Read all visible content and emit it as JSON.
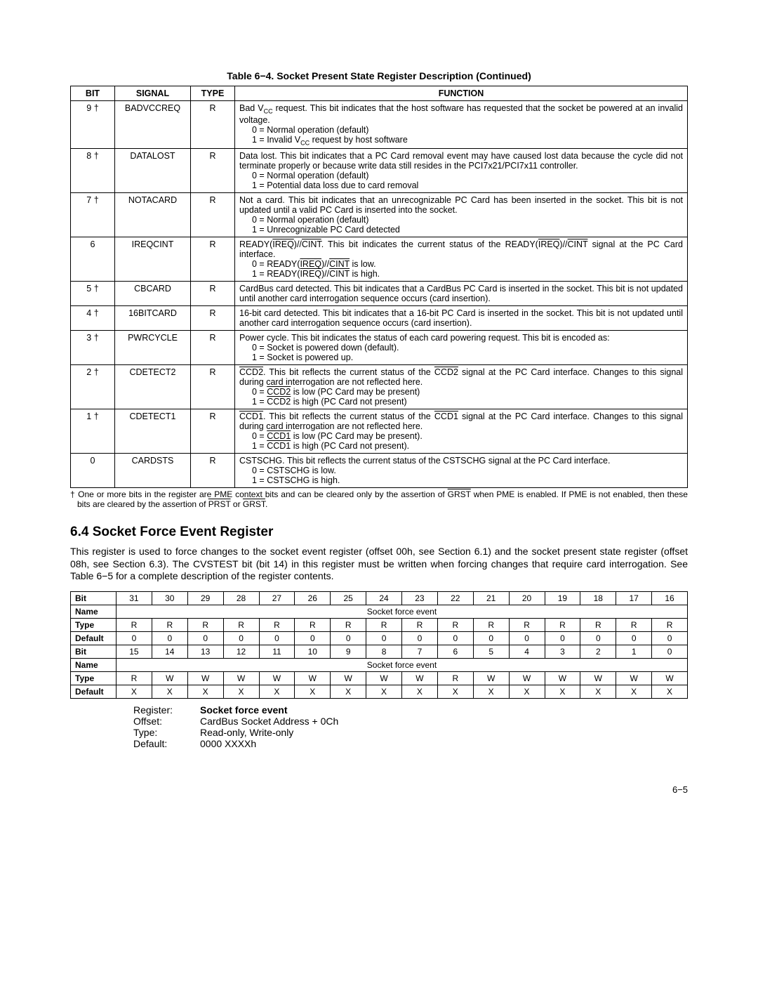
{
  "table1": {
    "title": "Table 6−4. Socket Present State Register Description (Continued)",
    "headers": [
      "BIT",
      "SIGNAL",
      "TYPE",
      "FUNCTION"
    ],
    "footnote_prefix": "†",
    "footnote": "One or more bits in the register are PME context bits and can be cleared only by the assertion of GRST when PME is enabled. If PME is not enabled, then these bits are cleared by the assertion of PRST or GRST."
  },
  "rows": [
    {
      "bit": "9 †",
      "signal": "BADVCCREQ",
      "type": "R"
    },
    {
      "bit": "8 †",
      "signal": "DATALOST",
      "type": "R"
    },
    {
      "bit": "7 †",
      "signal": "NOTACARD",
      "type": "R"
    },
    {
      "bit": "6",
      "signal": "IREQCINT",
      "type": "R"
    },
    {
      "bit": "5 †",
      "signal": "CBCARD",
      "type": "R"
    },
    {
      "bit": "4 †",
      "signal": "16BITCARD",
      "type": "R"
    },
    {
      "bit": "3 †",
      "signal": "PWRCYCLE",
      "type": "R"
    },
    {
      "bit": "2 †",
      "signal": "CDETECT2",
      "type": "R"
    },
    {
      "bit": "1 †",
      "signal": "CDETECT1",
      "type": "R"
    },
    {
      "bit": "0",
      "signal": "CARDSTS",
      "type": "R"
    }
  ],
  "section": {
    "heading": "6.4   Socket Force Event Register",
    "para": "This register is used to force changes to the socket event register (offset 00h, see Section 6.1) and the socket present state register (offset 08h, see Section 6.3). The CVSTEST bit (bit 14) in this register must be written when forcing changes that require card interrogation. See Table 6−5 for a complete description of the register contents."
  },
  "bitmap": {
    "label_bit": "Bit",
    "label_name": "Name",
    "label_type": "Type",
    "label_default": "Default",
    "name_span": "Socket force event",
    "hi_bits": [
      "31",
      "30",
      "29",
      "28",
      "27",
      "26",
      "25",
      "24",
      "23",
      "22",
      "21",
      "20",
      "19",
      "18",
      "17",
      "16"
    ],
    "hi_type": [
      "R",
      "R",
      "R",
      "R",
      "R",
      "R",
      "R",
      "R",
      "R",
      "R",
      "R",
      "R",
      "R",
      "R",
      "R",
      "R"
    ],
    "hi_def": [
      "0",
      "0",
      "0",
      "0",
      "0",
      "0",
      "0",
      "0",
      "0",
      "0",
      "0",
      "0",
      "0",
      "0",
      "0",
      "0"
    ],
    "lo_bits": [
      "15",
      "14",
      "13",
      "12",
      "11",
      "10",
      "9",
      "8",
      "7",
      "6",
      "5",
      "4",
      "3",
      "2",
      "1",
      "0"
    ],
    "lo_type": [
      "R",
      "W",
      "W",
      "W",
      "W",
      "W",
      "W",
      "W",
      "W",
      "R",
      "W",
      "W",
      "W",
      "W",
      "W",
      "W"
    ],
    "lo_def": [
      "X",
      "X",
      "X",
      "X",
      "X",
      "X",
      "X",
      "X",
      "X",
      "X",
      "X",
      "X",
      "X",
      "X",
      "X",
      "X"
    ]
  },
  "summary": {
    "register_k": "Register:",
    "register_v": "Socket force event",
    "offset_k": "Offset:",
    "offset_v": "CardBus Socket Address + 0Ch",
    "type_k": "Type:",
    "type_v": "Read-only, Write-only",
    "default_k": "Default:",
    "default_v": "0000 XXXXh"
  },
  "page_number": "6−5"
}
